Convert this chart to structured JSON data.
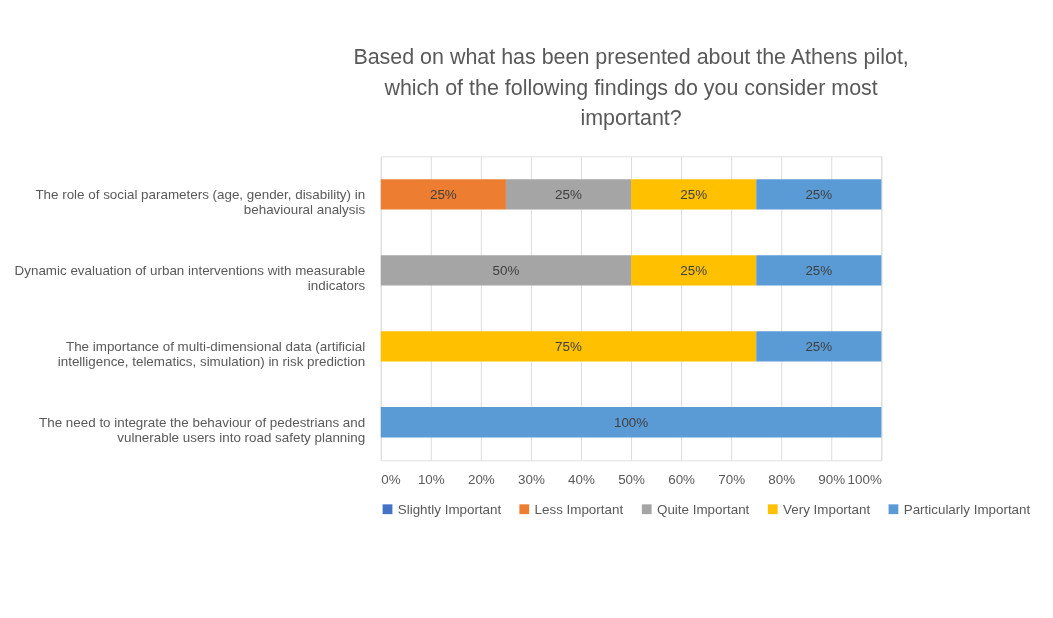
{
  "chart_data": {
    "type": "bar",
    "orientation": "horizontal",
    "stacked": true,
    "title": "Based on what has been presented about the Athens pilot, which of the following findings do you consider most important?",
    "categories": [
      "The role of social parameters (age, gender, disability) in behavioural analysis",
      "Dynamic evaluation of urban interventions with measurable indicators",
      "The importance of multi-dimensional data (artificial intelligence, telematics, simulation) in risk prediction",
      "The need to integrate the behaviour of pedestrians and vulnerable users into road safety planning"
    ],
    "series": [
      {
        "name": "Slightly Important",
        "color": "#4472c4",
        "values": [
          null,
          null,
          null,
          null
        ],
        "value_labels": [
          null,
          null,
          null,
          null
        ]
      },
      {
        "name": "Less Important",
        "color": "#ed7d31",
        "values": [
          25,
          null,
          null,
          null
        ],
        "value_labels": [
          "25%",
          null,
          null,
          null
        ]
      },
      {
        "name": "Quite Important",
        "color": "#a5a5a5",
        "values": [
          25,
          50,
          null,
          null
        ],
        "value_labels": [
          "25%",
          "50%",
          null,
          null
        ]
      },
      {
        "name": "Very Important",
        "color": "#ffc000",
        "values": [
          25,
          25,
          75,
          null
        ],
        "value_labels": [
          "25%",
          "25%",
          "75%",
          null
        ]
      },
      {
        "name": "Particularly Important",
        "color": "#5b9bd5",
        "values": [
          25,
          25,
          25,
          100
        ],
        "value_labels": [
          "25%",
          "25%",
          "25%",
          "100%"
        ]
      }
    ],
    "xlim": [
      0,
      100
    ],
    "xticks": [
      {
        "value": 0,
        "label": "0%"
      },
      {
        "value": 10,
        "label": "10%"
      },
      {
        "value": 20,
        "label": "20%"
      },
      {
        "value": 30,
        "label": "30%"
      },
      {
        "value": 40,
        "label": "40%"
      },
      {
        "value": 50,
        "label": "50%"
      },
      {
        "value": 60,
        "label": "60%"
      },
      {
        "value": 70,
        "label": "70%"
      },
      {
        "value": 80,
        "label": "80%"
      },
      {
        "value": 90,
        "label": "90%"
      },
      {
        "value": 100,
        "label": "100%"
      }
    ],
    "grid": "x",
    "legend": "bottom"
  }
}
